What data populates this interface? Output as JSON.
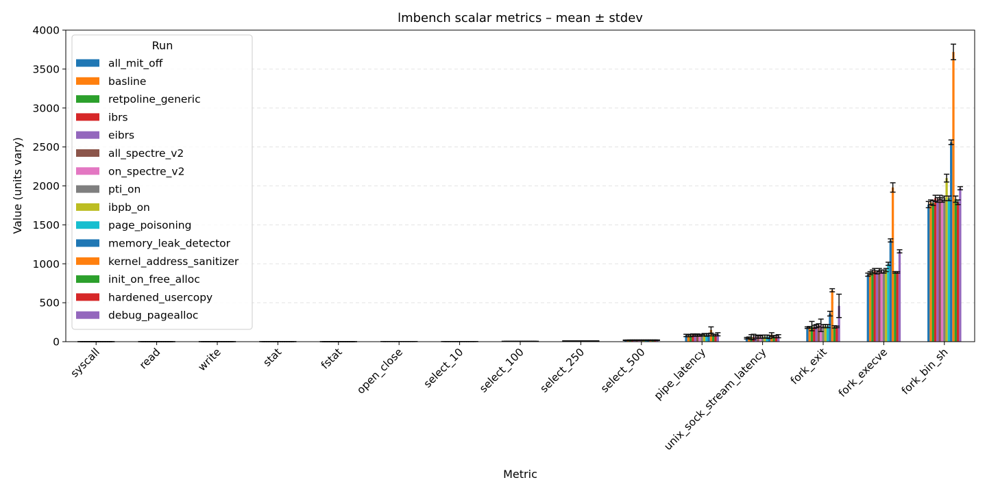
{
  "chart_data": {
    "type": "bar",
    "title": "lmbench scalar metrics – mean ± stdev",
    "xlabel": "Metric",
    "ylabel": "Value (units vary)",
    "ylim": [
      0,
      4000
    ],
    "yticks": [
      0,
      500,
      1000,
      1500,
      2000,
      2500,
      3000,
      3500,
      4000
    ],
    "grid": "horizontal dashed",
    "legend": {
      "title": "Run",
      "placement": "top-left"
    },
    "categories": [
      "syscall",
      "read",
      "write",
      "stat",
      "fstat",
      "open_close",
      "select_10",
      "select_100",
      "select_250",
      "select_500",
      "pipe_latency",
      "unix_sock_stream_latency",
      "fork_exit",
      "fork_execve",
      "fork_bin_sh"
    ],
    "series": [
      {
        "name": "all_mit_off",
        "color": "#1f77b4",
        "values": [
          0.3,
          0.4,
          0.3,
          0.8,
          0.4,
          1.6,
          1.5,
          4,
          9,
          18,
          80,
          45,
          180,
          860,
          1760
        ],
        "errors": [
          0.05,
          0.05,
          0.05,
          0.1,
          0.05,
          0.2,
          0.2,
          1,
          2,
          3,
          15,
          10,
          10,
          20,
          40
        ]
      },
      {
        "name": "basline",
        "color": "#ff7f0e",
        "values": [
          0.3,
          0.4,
          0.3,
          0.9,
          0.4,
          1.7,
          1.6,
          4,
          9,
          18,
          75,
          50,
          185,
          880,
          1790
        ],
        "errors": [
          0.05,
          0.05,
          0.05,
          0.1,
          0.05,
          0.2,
          0.2,
          1,
          2,
          3,
          12,
          10,
          10,
          20,
          30
        ]
      },
      {
        "name": "retpoline_generic",
        "color": "#2ca02c",
        "values": [
          0.3,
          0.4,
          0.3,
          0.9,
          0.4,
          1.8,
          1.6,
          4,
          9,
          19,
          80,
          60,
          200,
          900,
          1780
        ],
        "errors": [
          0.05,
          0.05,
          0.05,
          0.1,
          0.05,
          0.2,
          0.2,
          1,
          2,
          3,
          15,
          30,
          60,
          20,
          30
        ]
      },
      {
        "name": "ibrs",
        "color": "#d62728",
        "values": [
          0.3,
          0.4,
          0.3,
          0.9,
          0.4,
          1.8,
          1.6,
          4,
          9,
          19,
          85,
          60,
          190,
          910,
          1840
        ],
        "errors": [
          0.05,
          0.05,
          0.05,
          0.1,
          0.05,
          0.2,
          0.2,
          1,
          2,
          3,
          15,
          35,
          20,
          30,
          40
        ]
      },
      {
        "name": "eibrs",
        "color": "#9467bd",
        "values": [
          0.3,
          0.4,
          0.3,
          0.9,
          0.4,
          1.8,
          1.6,
          4,
          9,
          19,
          80,
          60,
          200,
          890,
          1820
        ],
        "errors": [
          0.05,
          0.05,
          0.05,
          0.1,
          0.05,
          0.2,
          0.2,
          1,
          2,
          3,
          10,
          15,
          20,
          20,
          30
        ]
      },
      {
        "name": "all_spectre_v2",
        "color": "#8c564b",
        "values": [
          0.3,
          0.4,
          0.3,
          0.9,
          0.4,
          1.8,
          1.6,
          4,
          9,
          19,
          85,
          65,
          210,
          920,
          1850
        ],
        "errors": [
          0.05,
          0.05,
          0.05,
          0.1,
          0.05,
          0.2,
          0.2,
          1,
          2,
          3,
          15,
          20,
          20,
          20,
          30
        ]
      },
      {
        "name": "on_spectre_v2",
        "color": "#e377c2",
        "values": [
          0.3,
          0.4,
          0.3,
          0.9,
          0.4,
          1.8,
          1.6,
          4,
          9,
          19,
          80,
          60,
          210,
          900,
          1820
        ],
        "errors": [
          0.05,
          0.05,
          0.05,
          0.1,
          0.05,
          0.2,
          0.2,
          1,
          2,
          3,
          10,
          15,
          80,
          20,
          30
        ]
      },
      {
        "name": "pti_on",
        "color": "#7f7f7f",
        "values": [
          0.3,
          0.4,
          0.3,
          0.9,
          0.4,
          1.8,
          1.6,
          4,
          9,
          19,
          85,
          65,
          200,
          900,
          1840
        ],
        "errors": [
          0.05,
          0.05,
          0.05,
          0.1,
          0.05,
          0.2,
          0.2,
          1,
          2,
          3,
          10,
          20,
          20,
          20,
          30
        ]
      },
      {
        "name": "ibpb_on",
        "color": "#bcbd22",
        "values": [
          0.3,
          0.4,
          0.3,
          0.9,
          0.4,
          1.8,
          1.6,
          4,
          9,
          19,
          90,
          65,
          200,
          920,
          2100
        ],
        "errors": [
          0.05,
          0.05,
          0.05,
          0.1,
          0.05,
          0.2,
          0.2,
          1,
          2,
          3,
          15,
          20,
          20,
          20,
          50
        ]
      },
      {
        "name": "page_poisoning",
        "color": "#17becf",
        "values": [
          0.3,
          0.4,
          0.3,
          0.9,
          0.4,
          1.8,
          1.6,
          4,
          9,
          19,
          85,
          65,
          200,
          1000,
          1840
        ],
        "errors": [
          0.05,
          0.05,
          0.05,
          0.1,
          0.05,
          0.2,
          0.2,
          1,
          2,
          3,
          15,
          20,
          20,
          20,
          30
        ]
      },
      {
        "name": "memory_leak_detector",
        "color": "#1f77b4",
        "values": [
          0.3,
          0.4,
          0.3,
          0.9,
          0.4,
          1.8,
          1.6,
          4,
          9,
          19,
          90,
          60,
          360,
          1300,
          2560
        ],
        "errors": [
          0.05,
          0.05,
          0.05,
          0.1,
          0.05,
          0.2,
          0.2,
          1,
          2,
          3,
          15,
          20,
          30,
          20,
          30
        ]
      },
      {
        "name": "kernel_address_sanitizer",
        "color": "#ff7f0e",
        "values": [
          0.3,
          0.4,
          0.3,
          0.9,
          0.4,
          1.8,
          1.6,
          4,
          9,
          19,
          150,
          90,
          660,
          1980,
          3720
        ],
        "errors": [
          0.05,
          0.05,
          0.05,
          0.1,
          0.05,
          0.2,
          0.2,
          1,
          2,
          3,
          40,
          25,
          20,
          60,
          100
        ]
      },
      {
        "name": "init_on_free_alloc",
        "color": "#2ca02c",
        "values": [
          0.3,
          0.4,
          0.3,
          0.9,
          0.4,
          1.8,
          1.6,
          4,
          9,
          19,
          85,
          65,
          190,
          890,
          1830
        ],
        "errors": [
          0.05,
          0.05,
          0.05,
          0.1,
          0.05,
          0.2,
          0.2,
          1,
          2,
          3,
          10,
          15,
          15,
          10,
          40
        ]
      },
      {
        "name": "hardened_usercopy",
        "color": "#d62728",
        "values": [
          0.3,
          0.4,
          0.3,
          0.9,
          0.4,
          1.8,
          1.6,
          4,
          9,
          19,
          85,
          65,
          190,
          890,
          1790
        ],
        "errors": [
          0.05,
          0.05,
          0.05,
          0.1,
          0.05,
          0.2,
          0.2,
          1,
          2,
          3,
          10,
          15,
          10,
          10,
          30
        ]
      },
      {
        "name": "debug_pagealloc",
        "color": "#9467bd",
        "values": [
          0.3,
          0.4,
          0.3,
          0.9,
          0.4,
          1.8,
          1.6,
          4,
          9,
          19,
          95,
          70,
          460,
          1160,
          1970
        ],
        "errors": [
          0.05,
          0.05,
          0.05,
          0.1,
          0.05,
          0.2,
          0.2,
          1,
          2,
          3,
          20,
          20,
          150,
          20,
          20
        ]
      }
    ]
  }
}
